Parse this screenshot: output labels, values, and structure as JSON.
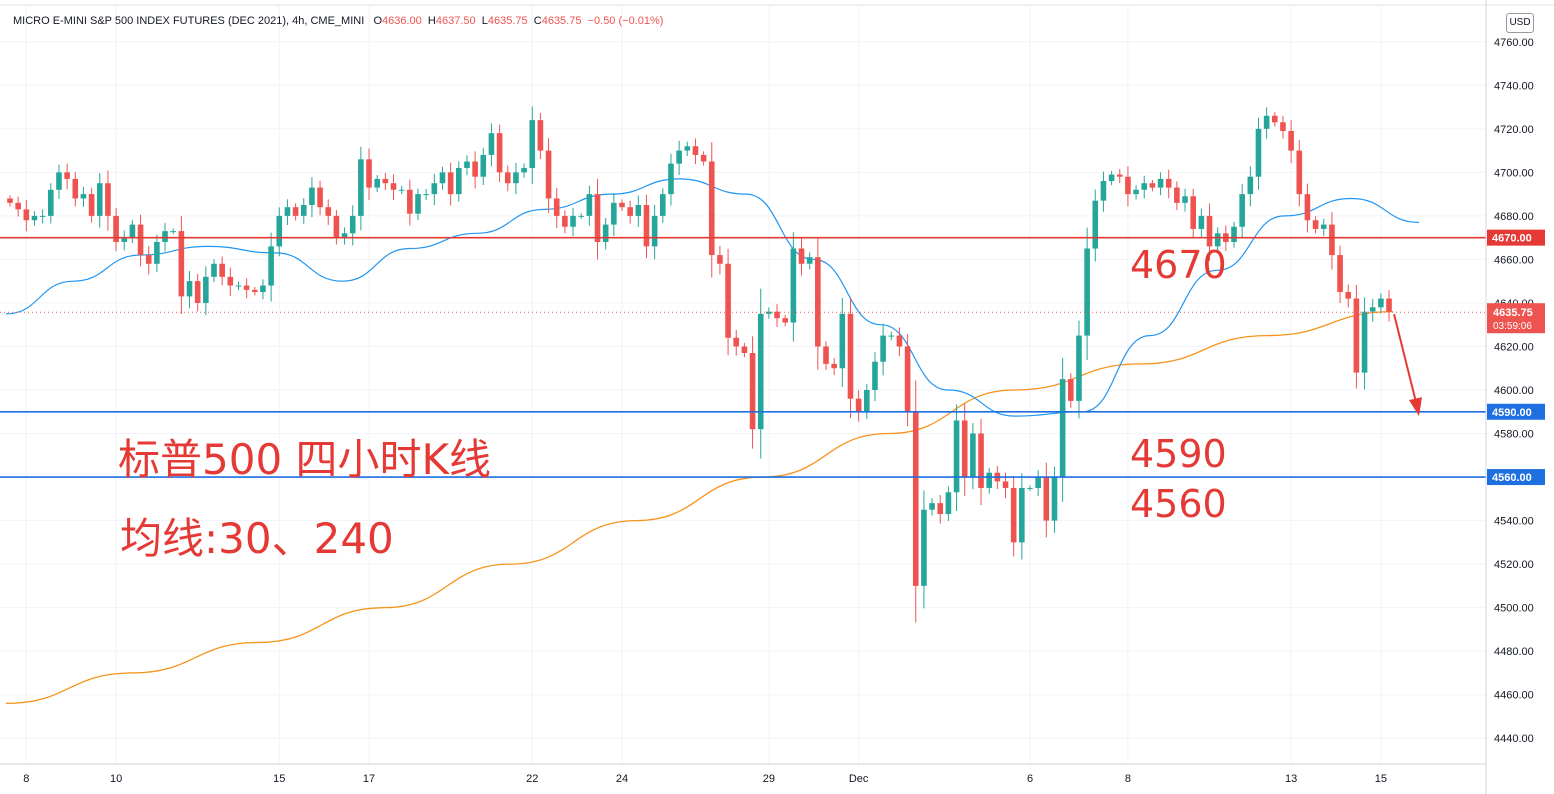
{
  "header": {
    "title": "MICRO E-MINI S&P 500 INDEX FUTURES (DEC 2021), 4h, CME_MINI",
    "o_label": "O",
    "o": "4636.00",
    "h_label": "H",
    "h": "4637.50",
    "l_label": "L",
    "l": "4635.75",
    "c_label": "C",
    "c": "4635.75",
    "change": "−0.50 (−0.01%)"
  },
  "currency_button": "USD",
  "annotations": {
    "title": "标普500 四小时K线",
    "ma_note": "均线:30、240",
    "level_4670": "4670",
    "level_4590": "4590",
    "level_4560": "4560"
  },
  "colors": {
    "up": "#26a69a",
    "down": "#ef5350",
    "ma30": "#2196f3",
    "ma240": "#f7931a",
    "resistance_line": "#e53935",
    "support_line": "#1e6fe0",
    "annotation": "#e53935"
  },
  "chart_data": {
    "type": "candlestick",
    "ylim": [
      4430,
      4770
    ],
    "y_ticks": [
      "4760.00",
      "4740.00",
      "4720.00",
      "4700.00",
      "4680.00",
      "4660.00",
      "4640.00",
      "4620.00",
      "4600.00",
      "4580.00",
      "4560.00",
      "4540.00",
      "4520.00",
      "4500.00",
      "4480.00",
      "4460.00",
      "4440.00"
    ],
    "x_ticks": [
      {
        "label": "8",
        "bar": 2
      },
      {
        "label": "10",
        "bar": 13
      },
      {
        "label": "15",
        "bar": 33
      },
      {
        "label": "17",
        "bar": 44
      },
      {
        "label": "22",
        "bar": 64
      },
      {
        "label": "24",
        "bar": 75
      },
      {
        "label": "29",
        "bar": 93
      },
      {
        "label": "Dec",
        "bar": 104
      },
      {
        "label": "6",
        "bar": 125
      },
      {
        "label": "8",
        "bar": 137
      },
      {
        "label": "13",
        "bar": 157
      },
      {
        "label": "15",
        "bar": 168
      }
    ],
    "horizontal_lines": [
      {
        "price": 4670,
        "label": "4670.00",
        "color": "#e53935"
      },
      {
        "price": 4590,
        "label": "4590.00",
        "color": "#1e6fe0"
      },
      {
        "price": 4560,
        "label": "4560.00",
        "color": "#1e6fe0"
      }
    ],
    "last_price": {
      "value": "4635.75",
      "countdown": "03:59:06"
    },
    "candles_close": [
      4686,
      4683,
      4678,
      4680,
      4680,
      4692,
      4700,
      4697,
      4688,
      4690,
      4680,
      4695,
      4680,
      4668,
      4670,
      4676,
      4662,
      4658,
      4668,
      4673,
      4673,
      4643,
      4650,
      4640,
      4652,
      4658,
      4652,
      4648,
      4648,
      4646,
      4645,
      4648,
      4666,
      4680,
      4684,
      4680,
      4685,
      4693,
      4684,
      4680,
      4670,
      4672,
      4680,
      4706,
      4693,
      4697,
      4695,
      4692,
      4692,
      4681,
      4690,
      4690,
      4695,
      4700,
      4690,
      4702,
      4705,
      4698,
      4708,
      4718,
      4700,
      4695,
      4700,
      4702,
      4724,
      4710,
      4688,
      4680,
      4675,
      4680,
      4680,
      4690,
      4668,
      4676,
      4686,
      4684,
      4680,
      4685,
      4666,
      4680,
      4690,
      4704,
      4710,
      4712,
      4708,
      4705,
      4662,
      4658,
      4624,
      4620,
      4617,
      4582,
      4635,
      4636,
      4633,
      4631,
      4665,
      4658,
      4661,
      4620,
      4612,
      4610,
      4635,
      4596,
      4590,
      4600,
      4613,
      4625,
      4625,
      4620,
      4590,
      4510,
      4545,
      4548,
      4543,
      4553,
      4586,
      4560,
      4580,
      4555,
      4562,
      4558,
      4555,
      4530,
      4555,
      4555,
      4560,
      4540,
      4560,
      4605,
      4595,
      4625,
      4665,
      4687,
      4696,
      4699,
      4698,
      4690,
      4692,
      4695,
      4693,
      4697,
      4693,
      4686,
      4689,
      4674,
      4680,
      4666,
      4672,
      4668,
      4675,
      4690,
      4698,
      4720,
      4726,
      4723,
      4719,
      4710,
      4690,
      4678,
      4674,
      4676,
      4662,
      4645,
      4642,
      4608,
      4636,
      4638,
      4642,
      4636
    ],
    "ma240_anchor_values": [
      4456,
      4470,
      4484,
      4500,
      4520,
      4540,
      4560,
      4580,
      4600,
      4612,
      4625,
      4636
    ],
    "ma30_anchor_values": [
      4635,
      4650,
      4662,
      4666,
      4663,
      4650,
      4665,
      4672,
      4683,
      4690,
      4697,
      4690,
      4660,
      4630,
      4600,
      4588,
      4590,
      4625,
      4655,
      4680,
      4688,
      4677
    ]
  }
}
